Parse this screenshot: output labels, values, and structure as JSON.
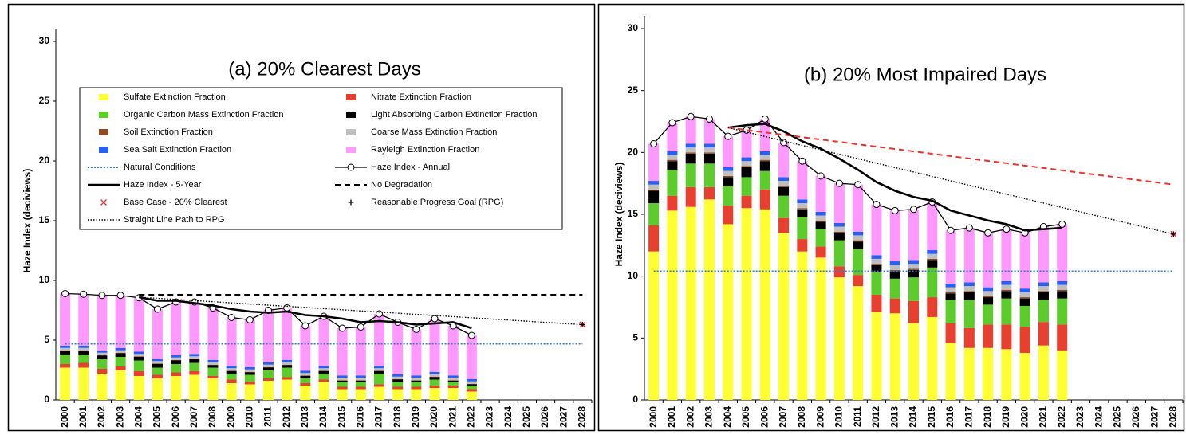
{
  "chart_data": [
    {
      "type": "bar",
      "title": "(a) 20% Clearest Days",
      "y_label": "Haze Index (deciviews)",
      "stacked": true,
      "legend": "upper-center",
      "categories": [
        "2000",
        "2001",
        "2002",
        "2003",
        "2004",
        "2005",
        "2006",
        "2007",
        "2008",
        "2009",
        "2010",
        "2011",
        "2012",
        "2013",
        "2014",
        "2015",
        "2016",
        "2017",
        "2018",
        "2019",
        "2020",
        "2021",
        "2022",
        "2023",
        "2024",
        "2025",
        "2026",
        "2027",
        "2028"
      ],
      "ylim": [
        0,
        30
      ],
      "yticks": [
        0,
        5,
        10,
        15,
        20,
        25,
        30
      ],
      "series": [
        {
          "name": "Sulfate Extinction Fraction",
          "kind": "bar",
          "color": "#ffff33",
          "values": [
            2.7,
            2.7,
            2.2,
            2.5,
            2.0,
            1.8,
            2.0,
            2.1,
            1.8,
            1.4,
            1.3,
            1.6,
            1.7,
            1.2,
            1.5,
            0.9,
            0.9,
            1.1,
            0.9,
            0.9,
            1.0,
            1.0,
            0.7,
            null,
            null,
            null,
            null,
            null,
            null
          ]
        },
        {
          "name": "Nitrate Extinction Fraction",
          "kind": "bar",
          "color": "#e8402f",
          "values": [
            0.3,
            0.4,
            0.4,
            0.3,
            0.4,
            0.3,
            0.3,
            0.3,
            0.2,
            0.3,
            0.2,
            0.2,
            0.2,
            0.2,
            0.2,
            0.2,
            0.2,
            0.2,
            0.2,
            0.2,
            0.2,
            0.2,
            0.2,
            null,
            null,
            null,
            null,
            null,
            null
          ]
        },
        {
          "name": "Organic Carbon Mass Extinction Fraction",
          "kind": "bar",
          "color": "#5ccb2b",
          "values": [
            0.8,
            0.7,
            0.8,
            0.8,
            0.9,
            0.6,
            0.7,
            0.7,
            0.7,
            0.5,
            0.6,
            0.7,
            0.8,
            0.4,
            0.5,
            0.4,
            0.4,
            0.9,
            0.4,
            0.4,
            0.5,
            0.3,
            0.3,
            null,
            null,
            null,
            null,
            null,
            null
          ]
        },
        {
          "name": "Light Absorbing Carbon Extinction Fraction",
          "kind": "bar",
          "color": "#000000",
          "values": [
            0.3,
            0.3,
            0.3,
            0.3,
            0.3,
            0.3,
            0.3,
            0.3,
            0.2,
            0.2,
            0.2,
            0.2,
            0.2,
            0.2,
            0.2,
            0.1,
            0.1,
            0.2,
            0.2,
            0.1,
            0.2,
            0.1,
            0.1,
            null,
            null,
            null,
            null,
            null,
            null
          ]
        },
        {
          "name": "Soil Extinction Fraction",
          "kind": "bar",
          "color": "#8b4a24",
          "values": [
            0.05,
            0.05,
            0.05,
            0.05,
            0.05,
            0.05,
            0.05,
            0.05,
            0.05,
            0.05,
            0.05,
            0.05,
            0.05,
            0.05,
            0.05,
            0.05,
            0.05,
            0.05,
            0.05,
            0.05,
            0.05,
            0.05,
            0.05,
            null,
            null,
            null,
            null,
            null,
            null
          ]
        },
        {
          "name": "Coarse Mass Extinction Fraction",
          "kind": "bar",
          "color": "#bfbfbf",
          "values": [
            0.2,
            0.2,
            0.2,
            0.2,
            0.2,
            0.2,
            0.2,
            0.2,
            0.2,
            0.2,
            0.2,
            0.2,
            0.2,
            0.2,
            0.2,
            0.2,
            0.2,
            0.2,
            0.2,
            0.2,
            0.2,
            0.2,
            0.2,
            null,
            null,
            null,
            null,
            null,
            null
          ]
        },
        {
          "name": "Sea Salt Extinction Fraction",
          "kind": "bar",
          "color": "#2a5ff5",
          "values": [
            0.2,
            0.2,
            0.2,
            0.2,
            0.2,
            0.2,
            0.2,
            0.2,
            0.2,
            0.2,
            0.2,
            0.2,
            0.2,
            0.2,
            0.2,
            0.2,
            0.2,
            0.2,
            0.2,
            0.2,
            0.2,
            0.2,
            0.2,
            null,
            null,
            null,
            null,
            null,
            null
          ]
        },
        {
          "name": "Rayleigh Extinction Fraction",
          "kind": "bar",
          "color": "#ff99ff",
          "values": [
            4.35,
            4.3,
            4.6,
            4.4,
            4.5,
            4.15,
            4.45,
            4.35,
            4.35,
            4.05,
            3.95,
            4.35,
            4.35,
            3.75,
            4.15,
            3.95,
            4.05,
            4.35,
            4.35,
            3.85,
            4.45,
            4.15,
            3.65,
            null,
            null,
            null,
            null,
            null,
            null
          ]
        },
        {
          "name": "Natural Conditions",
          "kind": "line",
          "style": "dotted",
          "color": "#3b78c4",
          "values": [
            4.7,
            4.7,
            4.7,
            4.7,
            4.7,
            4.7,
            4.7,
            4.7,
            4.7,
            4.7,
            4.7,
            4.7,
            4.7,
            4.7,
            4.7,
            4.7,
            4.7,
            4.7,
            4.7,
            4.7,
            4.7,
            4.7,
            4.7,
            4.7,
            4.7,
            4.7,
            4.7,
            4.7,
            4.7
          ]
        },
        {
          "name": "Haze Index - Annual",
          "kind": "line",
          "style": "solid",
          "marker": "circle",
          "color": "#000000",
          "values": [
            8.9,
            8.85,
            8.75,
            8.75,
            8.55,
            7.6,
            8.2,
            8.2,
            7.7,
            6.9,
            6.7,
            7.5,
            7.7,
            6.2,
            7.0,
            6.0,
            6.1,
            7.2,
            6.5,
            5.9,
            6.8,
            6.2,
            5.4,
            null,
            null,
            null,
            null,
            null,
            null
          ]
        },
        {
          "name": "Haze Index - 5-Year",
          "kind": "line",
          "style": "thick",
          "color": "#000000",
          "values": [
            null,
            null,
            null,
            null,
            8.6,
            8.3,
            8.3,
            8.1,
            7.9,
            7.6,
            7.4,
            7.3,
            7.4,
            7.1,
            7.0,
            6.8,
            6.5,
            6.6,
            6.5,
            6.3,
            6.4,
            6.5,
            6.0,
            null,
            null,
            null,
            null,
            null,
            null
          ]
        },
        {
          "name": "No Degradation",
          "kind": "line",
          "style": "dashed",
          "color": "#000000",
          "x": [
            "2004",
            "2028"
          ],
          "values": [
            8.8,
            8.8
          ]
        },
        {
          "name": "Base Case - 20% Clearest",
          "kind": "marker",
          "marker": "x",
          "color": "#e8202a",
          "x": [
            "2028"
          ],
          "values": [
            6.3
          ]
        },
        {
          "name": "Reasonable Progress Goal (RPG)",
          "kind": "marker",
          "marker": "plus",
          "color": "#000000",
          "x": [
            "2028"
          ],
          "values": [
            6.3
          ]
        },
        {
          "name": "Straight Line Path to RPG",
          "kind": "line",
          "style": "fine-dotted",
          "color": "#000000",
          "x": [
            "2004",
            "2028"
          ],
          "values": [
            8.6,
            6.3
          ]
        }
      ]
    },
    {
      "type": "bar",
      "title": "(b) 20% Most Impaired Days",
      "y_label": "Haze Index (deciviews)",
      "stacked": true,
      "legend": "none",
      "categories": [
        "2000",
        "2001",
        "2002",
        "2003",
        "2004",
        "2005",
        "2006",
        "2007",
        "2008",
        "2009",
        "2010",
        "2011",
        "2012",
        "2013",
        "2014",
        "2015",
        "2016",
        "2017",
        "2018",
        "2019",
        "2020",
        "2021",
        "2022",
        "2023",
        "2024",
        "2025",
        "2026",
        "2027",
        "2028"
      ],
      "ylim": [
        0,
        30
      ],
      "yticks": [
        0,
        5,
        10,
        15,
        20,
        25,
        30
      ],
      "series": [
        {
          "name": "Sulfate Extinction Fraction",
          "kind": "bar",
          "color": "#ffff33",
          "values": [
            12.0,
            15.3,
            15.6,
            16.2,
            14.2,
            15.5,
            15.4,
            13.5,
            12.0,
            11.5,
            9.9,
            9.2,
            7.1,
            7.0,
            6.2,
            6.7,
            4.6,
            4.2,
            4.2,
            4.1,
            3.8,
            4.4,
            4.0,
            null,
            null,
            null,
            null,
            null,
            null
          ]
        },
        {
          "name": "Nitrate Extinction Fraction",
          "kind": "bar",
          "color": "#e8402f",
          "values": [
            2.1,
            1.2,
            1.6,
            1.0,
            1.5,
            1.0,
            1.6,
            1.2,
            1.0,
            0.9,
            0.9,
            0.9,
            1.4,
            1.2,
            1.8,
            1.6,
            1.6,
            1.6,
            1.9,
            2.0,
            2.1,
            1.9,
            2.1,
            null,
            null,
            null,
            null,
            null,
            null
          ]
        },
        {
          "name": "Organic Carbon Mass Extinction Fraction",
          "kind": "bar",
          "color": "#5ccb2b",
          "values": [
            1.8,
            2.1,
            1.9,
            1.9,
            1.6,
            1.5,
            1.5,
            1.8,
            1.8,
            1.4,
            2.1,
            2.1,
            1.8,
            1.6,
            1.9,
            2.4,
            1.9,
            2.3,
            1.6,
            2.1,
            1.7,
            1.8,
            2.1,
            null,
            null,
            null,
            null,
            null,
            null
          ]
        },
        {
          "name": "Light Absorbing Carbon Extinction Fraction",
          "kind": "bar",
          "color": "#000000",
          "values": [
            1.0,
            0.7,
            0.8,
            0.8,
            0.7,
            0.8,
            0.8,
            0.7,
            0.6,
            0.6,
            0.6,
            0.6,
            0.6,
            0.6,
            0.6,
            0.6,
            0.5,
            0.6,
            0.6,
            0.6,
            0.6,
            0.6,
            0.6,
            null,
            null,
            null,
            null,
            null,
            null
          ]
        },
        {
          "name": "Soil Extinction Fraction",
          "kind": "bar",
          "color": "#8b4a24",
          "values": [
            0.1,
            0.1,
            0.1,
            0.1,
            0.1,
            0.1,
            0.1,
            0.1,
            0.1,
            0.1,
            0.1,
            0.1,
            0.1,
            0.1,
            0.1,
            0.1,
            0.1,
            0.1,
            0.1,
            0.1,
            0.1,
            0.1,
            0.1,
            null,
            null,
            null,
            null,
            null,
            null
          ]
        },
        {
          "name": "Coarse Mass Extinction Fraction",
          "kind": "bar",
          "color": "#bfbfbf",
          "values": [
            0.4,
            0.4,
            0.4,
            0.4,
            0.4,
            0.4,
            0.4,
            0.4,
            0.4,
            0.4,
            0.4,
            0.4,
            0.4,
            0.4,
            0.4,
            0.4,
            0.4,
            0.4,
            0.4,
            0.4,
            0.4,
            0.4,
            0.4,
            null,
            null,
            null,
            null,
            null,
            null
          ]
        },
        {
          "name": "Sea Salt Extinction Fraction",
          "kind": "bar",
          "color": "#2a5ff5",
          "values": [
            0.3,
            0.3,
            0.3,
            0.3,
            0.3,
            0.3,
            0.3,
            0.3,
            0.3,
            0.3,
            0.3,
            0.3,
            0.3,
            0.3,
            0.3,
            0.3,
            0.3,
            0.3,
            0.3,
            0.3,
            0.3,
            0.3,
            0.3,
            null,
            null,
            null,
            null,
            null,
            null
          ]
        },
        {
          "name": "Rayleigh Extinction Fraction",
          "kind": "bar",
          "color": "#ff99ff",
          "values": [
            3.0,
            2.3,
            2.2,
            2.0,
            2.5,
            2.2,
            2.6,
            2.8,
            3.1,
            2.9,
            3.2,
            3.8,
            4.1,
            4.1,
            4.1,
            3.9,
            4.3,
            4.4,
            4.4,
            4.2,
            4.5,
            4.5,
            4.6,
            null,
            null,
            null,
            null,
            null,
            null
          ]
        },
        {
          "name": "Natural Conditions",
          "kind": "line",
          "style": "dotted",
          "color": "#3b78c4",
          "values": [
            10.4,
            10.4,
            10.4,
            10.4,
            10.4,
            10.4,
            10.4,
            10.4,
            10.4,
            10.4,
            10.4,
            10.4,
            10.4,
            10.4,
            10.4,
            10.4,
            10.4,
            10.4,
            10.4,
            10.4,
            10.4,
            10.4,
            10.4,
            10.4,
            10.4,
            10.4,
            10.4,
            10.4,
            10.4
          ]
        },
        {
          "name": "Haze Index - Annual",
          "kind": "line",
          "style": "solid",
          "marker": "circle",
          "color": "#000000",
          "values": [
            20.7,
            22.4,
            22.9,
            22.7,
            21.3,
            21.8,
            22.7,
            20.8,
            19.3,
            18.1,
            17.5,
            17.4,
            15.8,
            15.3,
            15.4,
            16.0,
            13.7,
            13.9,
            13.5,
            13.8,
            13.5,
            14.0,
            14.2,
            null,
            null,
            null,
            null,
            null,
            null
          ]
        },
        {
          "name": "Haze Index - 5-Year",
          "kind": "line",
          "style": "thick",
          "color": "#000000",
          "values": [
            null,
            null,
            null,
            null,
            22.0,
            22.2,
            22.3,
            21.7,
            20.9,
            20.3,
            19.5,
            18.6,
            17.6,
            16.9,
            16.4,
            16.1,
            15.3,
            14.9,
            14.5,
            14.2,
            13.7,
            13.8,
            13.9,
            null,
            null,
            null,
            null,
            null,
            null
          ]
        },
        {
          "name": "No Degradation",
          "kind": "line",
          "style": "dashed",
          "color": "#f0302a",
          "x": [
            "2004",
            "2028"
          ],
          "values": [
            22.0,
            17.4
          ]
        },
        {
          "kind": "marker",
          "marker": "x",
          "color": "#e8202a",
          "x": [
            "2028"
          ],
          "values": [
            13.4
          ]
        },
        {
          "name": "Reasonable Progress Goal (RPG)",
          "kind": "marker",
          "marker": "plus",
          "color": "#000000",
          "x": [
            "2028"
          ],
          "values": [
            13.4
          ]
        },
        {
          "name": "Straight Line Path to RPG",
          "kind": "line",
          "style": "fine-dotted",
          "color": "#000000",
          "x": [
            "2004",
            "2028"
          ],
          "values": [
            22.0,
            13.4
          ]
        }
      ]
    }
  ]
}
